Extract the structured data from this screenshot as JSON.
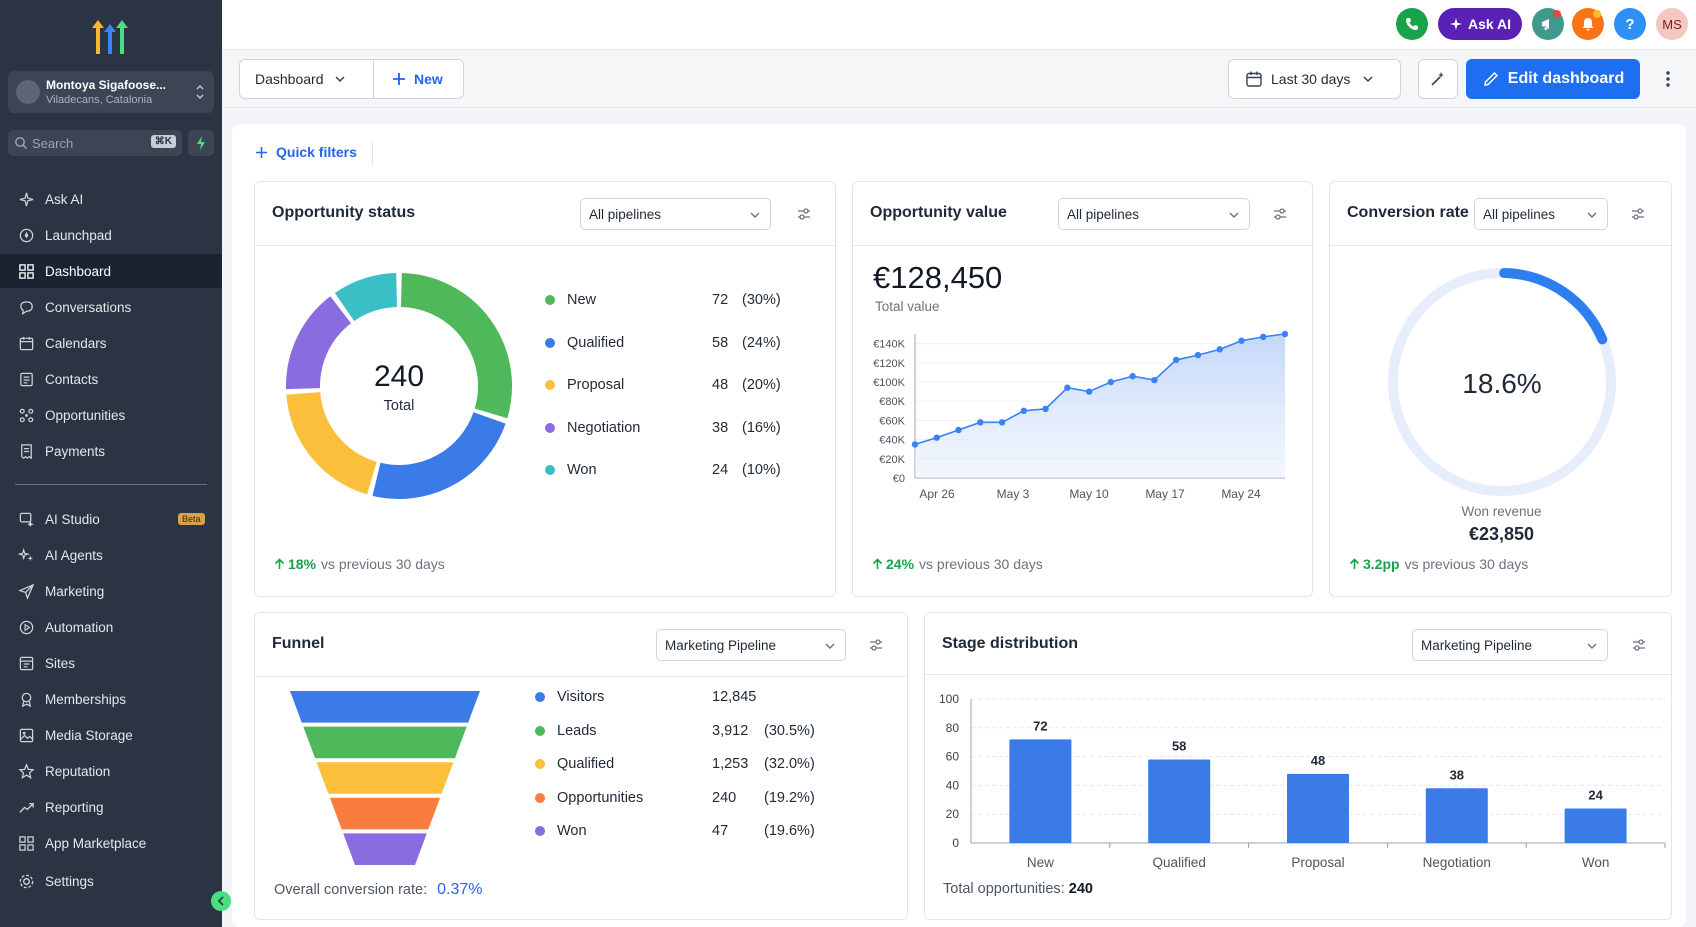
{
  "account": {
    "name": "Montoya Sigafoose...",
    "location": "Viladecans, Catalonia"
  },
  "search": {
    "placeholder": "Search",
    "shortcut": "⌘K"
  },
  "nav_top": [
    {
      "label": "Ask AI",
      "icon": "sparkle-icon"
    },
    {
      "label": "Launchpad",
      "icon": "rocket-icon"
    },
    {
      "label": "Dashboard",
      "icon": "grid-icon",
      "active": true
    },
    {
      "label": "Conversations",
      "icon": "chat-icon"
    },
    {
      "label": "Calendars",
      "icon": "calendar-icon"
    },
    {
      "label": "Contacts",
      "icon": "contacts-icon"
    },
    {
      "label": "Opportunities",
      "icon": "opportunities-icon"
    },
    {
      "label": "Payments",
      "icon": "receipt-icon"
    }
  ],
  "nav_bottom": [
    {
      "label": "AI Studio",
      "icon": "ai-studio-icon",
      "badge": "Beta"
    },
    {
      "label": "AI Agents",
      "icon": "ai-agents-icon"
    },
    {
      "label": "Marketing",
      "icon": "send-icon"
    },
    {
      "label": "Automation",
      "icon": "automation-icon"
    },
    {
      "label": "Sites",
      "icon": "sites-icon"
    },
    {
      "label": "Memberships",
      "icon": "memberships-icon"
    },
    {
      "label": "Media Storage",
      "icon": "image-icon"
    },
    {
      "label": "Reputation",
      "icon": "star-icon"
    },
    {
      "label": "Reporting",
      "icon": "trend-icon"
    },
    {
      "label": "App Marketplace",
      "icon": "apps-icon"
    }
  ],
  "settings_label": "Settings",
  "topbar": {
    "ask_ai": "Ask AI",
    "user_initials": "MS",
    "help": "?"
  },
  "toolbar": {
    "dashboard_label": "Dashboard",
    "new_label": "New",
    "date_range": "Last 30 days",
    "edit_label": "Edit dashboard"
  },
  "quick_filters": "Quick filters",
  "opportunity_status": {
    "title": "Opportunity status",
    "filter": "All pipelines",
    "total": "240",
    "total_label": "Total",
    "items": [
      {
        "label": "New",
        "count": "72",
        "pct": "(30%)",
        "color": "#4fb85a"
      },
      {
        "label": "Qualified",
        "count": "58",
        "pct": "(24%)",
        "color": "#3b7be8"
      },
      {
        "label": "Proposal",
        "count": "48",
        "pct": "(20%)",
        "color": "#fbbf3c"
      },
      {
        "label": "Negotiation",
        "count": "38",
        "pct": "(16%)",
        "color": "#8b6be0"
      },
      {
        "label": "Won",
        "count": "24",
        "pct": "(10%)",
        "color": "#3bbfc7"
      }
    ],
    "trend_value": "18%",
    "trend_text": "vs previous 30 days"
  },
  "opportunity_value": {
    "title": "Opportunity value",
    "filter": "All pipelines",
    "value": "€128,450",
    "value_label": "Total value",
    "trend_value": "24%",
    "trend_text": "vs previous 30 days"
  },
  "conversion_rate": {
    "title": "Conversion rate",
    "filter": "All pipelines",
    "rate": "18.6%",
    "rate_fraction": 0.186,
    "sub_label": "Won revenue",
    "sub_value": "€23,850",
    "trend_value": "3.2pp",
    "trend_text": "vs previous 30 days"
  },
  "funnel": {
    "title": "Funnel",
    "filter": "Marketing Pipeline",
    "items": [
      {
        "label": "Visitors",
        "count": "12,845",
        "pct": "",
        "color": "#3b7be8"
      },
      {
        "label": "Leads",
        "count": "3,912",
        "pct": "(30.5%)",
        "color": "#4fb85a"
      },
      {
        "label": "Qualified",
        "count": "1,253",
        "pct": "(32.0%)",
        "color": "#fbbf3c"
      },
      {
        "label": "Opportunities",
        "count": "240",
        "pct": "(19.2%)",
        "color": "#f97d3c"
      },
      {
        "label": "Won",
        "count": "47",
        "pct": "(19.6%)",
        "color": "#8b6be0"
      }
    ],
    "conversion_label": "Overall conversion rate:",
    "conversion_value": "0.37%"
  },
  "stage_distribution": {
    "title": "Stage distribution",
    "filter": "Marketing Pipeline",
    "footer_label": "Total opportunities:",
    "footer_value": "240"
  },
  "chart_data": [
    {
      "type": "pie",
      "categories": [
        "New",
        "Qualified",
        "Proposal",
        "Negotiation",
        "Won"
      ],
      "values": [
        72,
        58,
        48,
        38,
        24
      ],
      "colors": [
        "#4fb85a",
        "#3b7be8",
        "#fbbf3c",
        "#8b6be0",
        "#3bbfc7"
      ],
      "title": "Opportunity status"
    },
    {
      "type": "area",
      "title": "Opportunity value",
      "x": [
        "Apr 24",
        "Apr 25",
        "Apr 26",
        "Apr 27",
        "Apr 28",
        "Apr 29",
        "May 1",
        "May 4",
        "May 7",
        "May 10",
        "May 11",
        "May 13",
        "May 15",
        "May 17",
        "May 20",
        "May 22",
        "May 24",
        "May 25"
      ],
      "values": [
        35000,
        42000,
        50000,
        58000,
        58000,
        70000,
        72000,
        94000,
        90000,
        100000,
        106000,
        102000,
        123000,
        128000,
        134000,
        143000,
        147000,
        150000
      ],
      "xticks": [
        "Apr 26",
        "May 3",
        "May 10",
        "May 17",
        "May 24"
      ],
      "yticks": [
        "€0",
        "€20K",
        "€40K",
        "€60K",
        "€80K",
        "€100K",
        "€120K",
        "€140K"
      ],
      "ylim": [
        0,
        150000
      ],
      "color": "#3b82f6"
    },
    {
      "type": "bar",
      "title": "Stage distribution",
      "categories": [
        "New",
        "Qualified",
        "Proposal",
        "Negotiation",
        "Won"
      ],
      "values": [
        72,
        58,
        48,
        38,
        24
      ],
      "yticks": [
        0,
        20,
        40,
        60,
        80,
        100
      ],
      "ylim": [
        0,
        100
      ],
      "color": "#3b7be8"
    }
  ]
}
